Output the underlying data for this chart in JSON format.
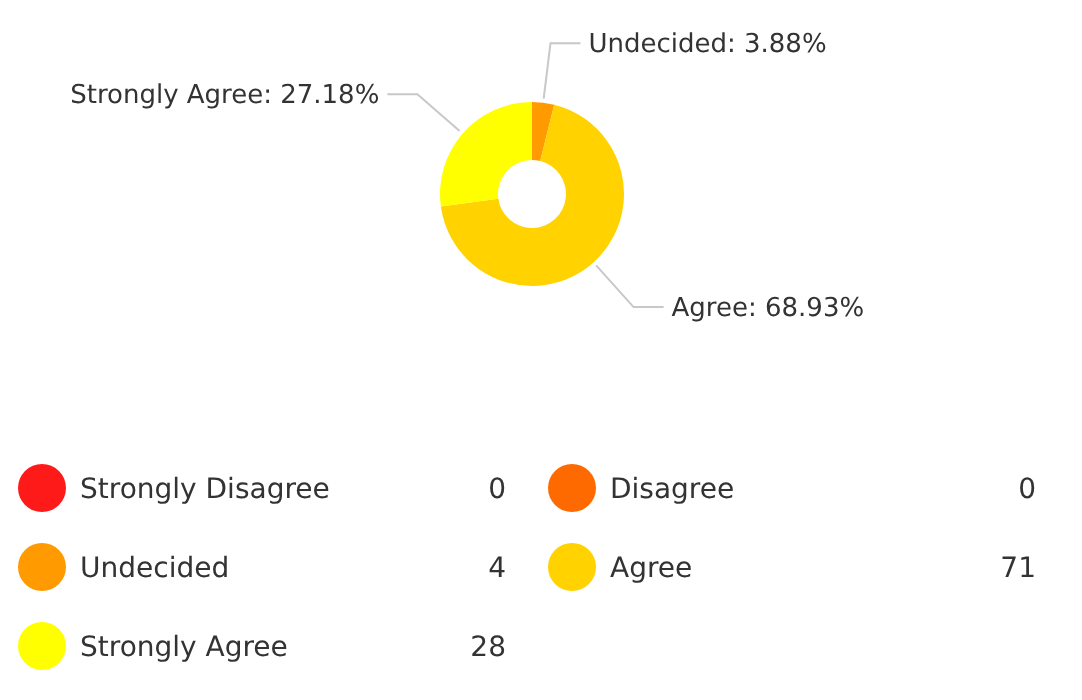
{
  "chart_data": {
    "type": "donut",
    "categories": [
      "Strongly Disagree",
      "Disagree",
      "Undecided",
      "Agree",
      "Strongly Agree"
    ],
    "values": [
      0,
      0,
      4,
      71,
      28
    ],
    "colors": [
      "#ff1a1a",
      "#ff6a00",
      "#ff9a00",
      "#ffd200",
      "#ffff00"
    ],
    "value_labels": [
      "0",
      "0",
      "4",
      "71",
      "28"
    ],
    "annotations": [
      "Undecided: 3.88%",
      "Agree: 68.93%",
      "Strongly Agree: 27.18%"
    ],
    "legend": "bottom"
  }
}
